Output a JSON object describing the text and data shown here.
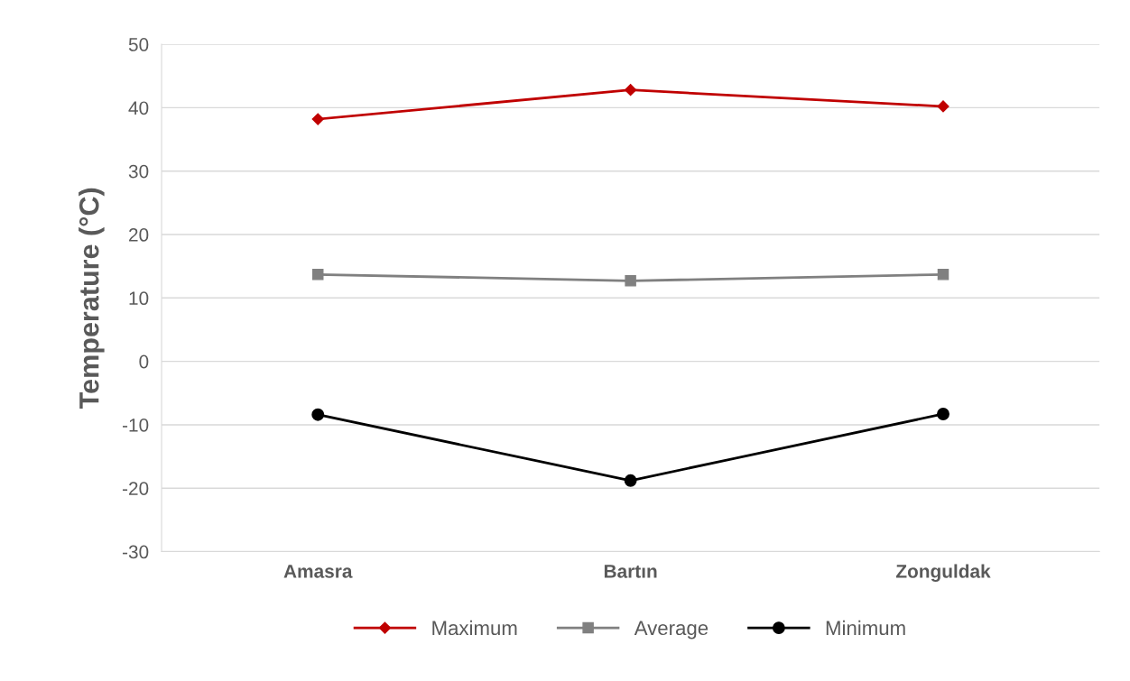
{
  "chart_data": {
    "type": "line",
    "ylabel": "Temperature (°C)",
    "categories": [
      "Amasra",
      "Bartın",
      "Zonguldak"
    ],
    "series": [
      {
        "name": "Maximum",
        "color": "#c00000",
        "marker": "diamond",
        "values": [
          38.2,
          42.8,
          40.2
        ]
      },
      {
        "name": "Average",
        "color": "#808080",
        "marker": "square",
        "values": [
          13.7,
          12.7,
          13.7
        ]
      },
      {
        "name": "Minimum",
        "color": "#000000",
        "marker": "circle",
        "values": [
          -8.4,
          -18.8,
          -8.3
        ]
      }
    ],
    "ylim": [
      -30,
      50
    ],
    "yticks": [
      -30,
      -20,
      -10,
      0,
      10,
      20,
      30,
      40,
      50
    ],
    "grid": "y",
    "legend": "bottom",
    "line_style": "solid"
  }
}
